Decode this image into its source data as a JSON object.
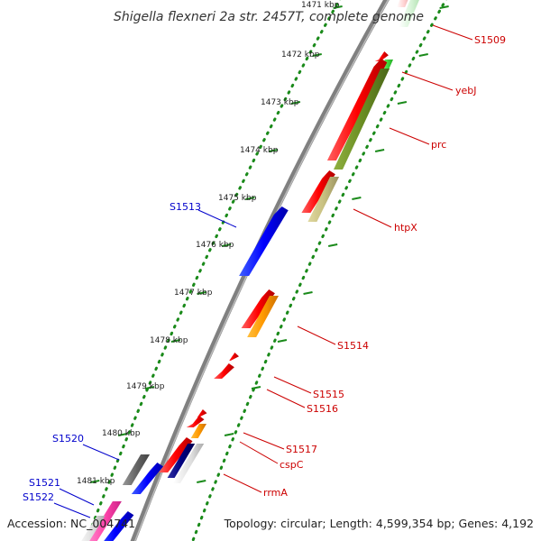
{
  "title": "Shigella flexneri 2a str. 2457T, complete genome",
  "footer": {
    "accession": "Accession: NC_004741",
    "topology": "Topology: circular; Length: 4,599,354 bp; Genes: 4,192"
  },
  "colors": {
    "backbone": "#808080",
    "tick": "#1a8a1a",
    "label_forward": "#0000cc",
    "label_reverse": "#cc0000",
    "cds_forward": "#0000ff",
    "cds_reverse": "#ff0000",
    "olive": "#6b8e23",
    "khaki": "#c8c080",
    "orange": "#ff9900",
    "navy": "#000080",
    "gray": "#666666",
    "pink": "#ff44aa",
    "light_green": "#44dd44"
  },
  "ticks": [
    "1471 kbp",
    "1472 kbp",
    "1473 kbp",
    "1474 kbp",
    "1475 kbp",
    "1476 kbp",
    "1477 kbp",
    "1478 kbp",
    "1479 kbp",
    "1480 kbp",
    "1481 kbp"
  ],
  "genes": [
    {
      "name": "S1509",
      "strand": "reverse"
    },
    {
      "name": "yebJ",
      "strand": "reverse"
    },
    {
      "name": "prc",
      "strand": "reverse"
    },
    {
      "name": "htpX",
      "strand": "reverse"
    },
    {
      "name": "S1513",
      "strand": "forward"
    },
    {
      "name": "S1514",
      "strand": "reverse"
    },
    {
      "name": "S1515",
      "strand": "reverse"
    },
    {
      "name": "S1516",
      "strand": "reverse"
    },
    {
      "name": "S1517",
      "strand": "reverse"
    },
    {
      "name": "cspC",
      "strand": "reverse"
    },
    {
      "name": "rrmA",
      "strand": "reverse"
    },
    {
      "name": "S1520",
      "strand": "forward"
    },
    {
      "name": "S1521",
      "strand": "forward"
    },
    {
      "name": "S1522",
      "strand": "forward"
    }
  ]
}
